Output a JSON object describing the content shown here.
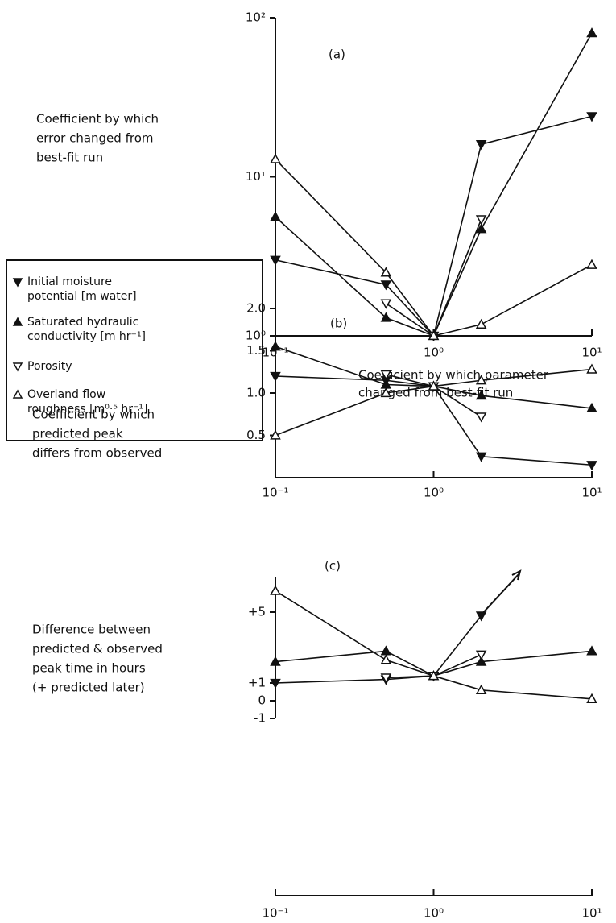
{
  "chart_data": [
    {
      "type": "line",
      "title": "(a)",
      "ylabel": [
        "Coefficient by which",
        "error changed from",
        "best-fit run"
      ],
      "xlabel": [
        "Coefficient by which parameter",
        "changed from best-fit run"
      ],
      "x": [
        0.1,
        0.5,
        1,
        2,
        10
      ],
      "xscale": "log",
      "yscale": "log",
      "xlim": [
        0.1,
        10
      ],
      "ylim": [
        1,
        100
      ],
      "xticks": [
        {
          "value": 0.1,
          "label": "10⁻¹"
        },
        {
          "value": 1,
          "label": "10⁰"
        },
        {
          "value": 10,
          "label": "10¹"
        }
      ],
      "yticks": [
        {
          "value": 1,
          "label": "10⁰"
        },
        {
          "value": 10,
          "label": "10¹"
        },
        {
          "value": 100,
          "label": "10²"
        }
      ],
      "series": [
        {
          "name": "Initial moisture potential [m water]",
          "color": "#111111",
          "marker": "down",
          "filled": true,
          "values": [
            3.0,
            2.1,
            1,
            16,
            24
          ]
        },
        {
          "name": "Saturated hydraulic conductivity [m hr⁻¹]",
          "color": "#111111",
          "marker": "up",
          "filled": true,
          "values": [
            5.6,
            1.3,
            1,
            4.7,
            80
          ]
        },
        {
          "name": "Porosity",
          "color": "#111111",
          "marker": "down",
          "filled": false,
          "values": [
            null,
            1.6,
            1,
            5.4,
            null
          ]
        },
        {
          "name": "Overland flow roughness [m⁰·⁵ hr⁻¹]",
          "color": "#111111",
          "marker": "up",
          "filled": false,
          "values": [
            12.9,
            2.5,
            1,
            1.18,
            2.8
          ]
        }
      ]
    },
    {
      "type": "line",
      "title": "(b)",
      "ylabel": [
        "Coefficient by which",
        "predicted peak",
        "differs from observed"
      ],
      "x": [
        0.1,
        0.5,
        1,
        2,
        10
      ],
      "xscale": "log",
      "xlim": [
        0.1,
        10
      ],
      "ylim": [
        0,
        2
      ],
      "xticks": [
        {
          "value": 0.1,
          "label": "10⁻¹"
        },
        {
          "value": 1,
          "label": "10⁰"
        },
        {
          "value": 10,
          "label": "10¹"
        }
      ],
      "yticks": [
        0.5,
        {
          "value": 1,
          "label": "1.0"
        },
        1.5,
        {
          "value": 2,
          "label": "2.0"
        }
      ],
      "series": [
        {
          "color": "#111111",
          "marker": "down",
          "filled": true,
          "values": [
            1.2,
            1.15,
            1.08,
            0.25,
            0.15
          ]
        },
        {
          "color": "#111111",
          "marker": "up",
          "filled": true,
          "values": [
            1.55,
            1.1,
            1.08,
            0.97,
            0.82
          ]
        },
        {
          "color": "#111111",
          "marker": "down",
          "filled": false,
          "values": [
            null,
            1.22,
            1.08,
            0.72,
            null
          ]
        },
        {
          "color": "#111111",
          "marker": "up",
          "filled": false,
          "values": [
            0.5,
            1.0,
            1.08,
            1.15,
            1.28
          ]
        }
      ]
    },
    {
      "type": "line",
      "title": "(c)",
      "ylabel": [
        "Difference between",
        "predicted & observed",
        "peak time in hours",
        "(+ predicted later)"
      ],
      "x": [
        0.1,
        0.5,
        1,
        2,
        10
      ],
      "xscale": "log",
      "xlim": [
        0.1,
        10
      ],
      "ylim": [
        -1,
        7
      ],
      "xticks": [
        {
          "value": 0.1,
          "label": "10⁻¹"
        },
        {
          "value": 1,
          "label": "10⁰"
        },
        {
          "value": 10,
          "label": "10¹"
        }
      ],
      "yticks": [
        {
          "value": 5,
          "label": "+5"
        },
        {
          "value": 1,
          "label": "+1"
        },
        0,
        -1
      ],
      "series": [
        {
          "color": "#111111",
          "marker": "down",
          "filled": true,
          "values": [
            1,
            1.2,
            1.4,
            4.8,
            null
          ]
        },
        {
          "color": "#111111",
          "marker": "up",
          "filled": true,
          "values": [
            2.2,
            2.8,
            1.4,
            2.2,
            2.8
          ]
        },
        {
          "color": "#111111",
          "marker": "down",
          "filled": false,
          "values": [
            null,
            1.3,
            1.4,
            2.6,
            null
          ]
        },
        {
          "color": "#111111",
          "marker": "up",
          "filled": false,
          "values": [
            6.2,
            2.3,
            1.4,
            0.6,
            0.1
          ]
        }
      ]
    }
  ]
}
